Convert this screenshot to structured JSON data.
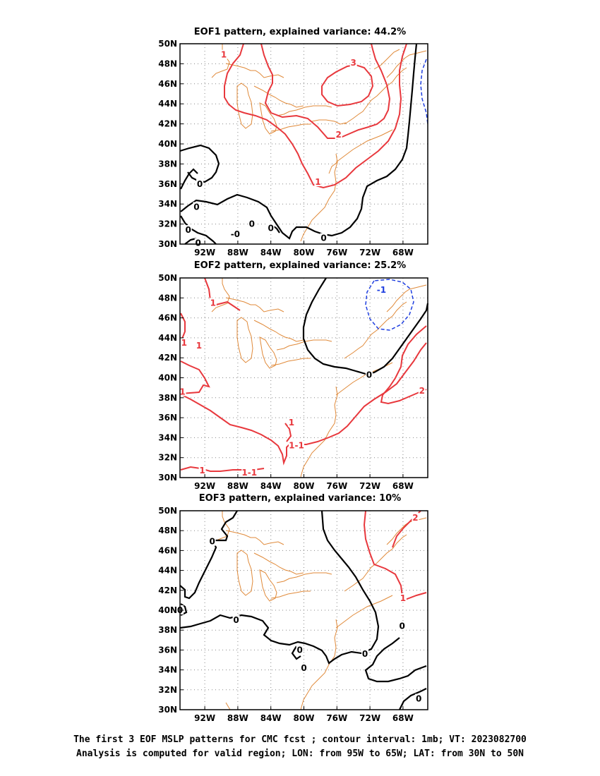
{
  "colors": {
    "positive_contour": "#e8383d",
    "zero_contour": "#000000",
    "negative_contour": "#1f3fe0",
    "coastline": "#e08a3a",
    "grid": "#888888"
  },
  "axes": {
    "lon_ticks": [
      "92W",
      "88W",
      "84W",
      "80W",
      "76W",
      "72W",
      "68W"
    ],
    "lat_ticks": [
      "50N",
      "48N",
      "46N",
      "44N",
      "42N",
      "40N",
      "38N",
      "36N",
      "34N",
      "32N",
      "30N"
    ],
    "lon_range": [
      -95,
      -65
    ],
    "lat_range": [
      30,
      50
    ]
  },
  "panels": [
    {
      "title": "EOF1 pattern, explained variance: 44.2%",
      "labels": [
        {
          "text": "1",
          "kind": "pos",
          "lon": -89.7,
          "lat": 48.9
        },
        {
          "text": "3",
          "kind": "pos",
          "lon": -74.0,
          "lat": 48.1
        },
        {
          "text": "2",
          "kind": "pos",
          "lon": -75.8,
          "lat": 40.9
        },
        {
          "text": "1",
          "kind": "pos",
          "lon": -78.3,
          "lat": 36.2
        },
        {
          "text": "0",
          "kind": "zero",
          "lon": -92.6,
          "lat": 36.0
        },
        {
          "text": "0",
          "kind": "zero",
          "lon": -93.0,
          "lat": 33.7
        },
        {
          "text": "0",
          "kind": "zero",
          "lon": -94.0,
          "lat": 31.4
        },
        {
          "text": "-0",
          "kind": "zero",
          "lon": -88.3,
          "lat": 31.0
        },
        {
          "text": "0",
          "kind": "zero",
          "lon": -86.3,
          "lat": 32.0
        },
        {
          "text": "0",
          "kind": "zero",
          "lon": -84.0,
          "lat": 31.6
        },
        {
          "text": "0",
          "kind": "zero",
          "lon": -92.8,
          "lat": 30.1
        },
        {
          "text": "0",
          "kind": "zero",
          "lon": -77.6,
          "lat": 30.6
        }
      ]
    },
    {
      "title": "EOF2 pattern, explained variance: 25.2%",
      "labels": [
        {
          "text": "-1",
          "kind": "neg",
          "lon": -70.6,
          "lat": 48.8
        },
        {
          "text": "1",
          "kind": "pos",
          "lon": -91.0,
          "lat": 47.5
        },
        {
          "text": "1",
          "kind": "pos",
          "lon": -94.5,
          "lat": 43.5
        },
        {
          "text": "1",
          "kind": "pos",
          "lon": -92.7,
          "lat": 43.2
        },
        {
          "text": "0",
          "kind": "zero",
          "lon": -72.1,
          "lat": 40.3
        },
        {
          "text": "1",
          "kind": "pos",
          "lon": -94.7,
          "lat": 38.6
        },
        {
          "text": "2",
          "kind": "pos",
          "lon": -65.7,
          "lat": 38.7
        },
        {
          "text": "1",
          "kind": "pos",
          "lon": -81.5,
          "lat": 35.5
        },
        {
          "text": "1-1",
          "kind": "pos",
          "lon": -80.9,
          "lat": 33.2
        },
        {
          "text": "1",
          "kind": "pos",
          "lon": -92.3,
          "lat": 30.7
        },
        {
          "text": "1-1",
          "kind": "pos",
          "lon": -86.6,
          "lat": 30.5
        }
      ]
    },
    {
      "title": "EOF3 pattern, explained variance: 10%",
      "labels": [
        {
          "text": "2",
          "kind": "pos",
          "lon": -66.5,
          "lat": 49.3
        },
        {
          "text": "0",
          "kind": "zero",
          "lon": -91.1,
          "lat": 46.9
        },
        {
          "text": "1",
          "kind": "pos",
          "lon": -68.0,
          "lat": 41.2
        },
        {
          "text": "0",
          "kind": "zero",
          "lon": -95.0,
          "lat": 40.0
        },
        {
          "text": "0",
          "kind": "zero",
          "lon": -88.2,
          "lat": 39.0
        },
        {
          "text": "0",
          "kind": "zero",
          "lon": -80.5,
          "lat": 36.0
        },
        {
          "text": "0",
          "kind": "zero",
          "lon": -72.6,
          "lat": 35.6
        },
        {
          "text": "0",
          "kind": "zero",
          "lon": -68.1,
          "lat": 38.4
        },
        {
          "text": "0",
          "kind": "zero",
          "lon": -80.0,
          "lat": 34.2
        },
        {
          "text": "0",
          "kind": "zero",
          "lon": -66.1,
          "lat": 31.1
        }
      ]
    }
  ],
  "caption": {
    "line1": "The first 3 EOF MSLP patterns for CMC fcst ; contour interval: 1mb; VT: 2023082700",
    "line2": "Analysis is computed for valid region; LON: from 95W to 65W; LAT: from 30N to 50N"
  }
}
